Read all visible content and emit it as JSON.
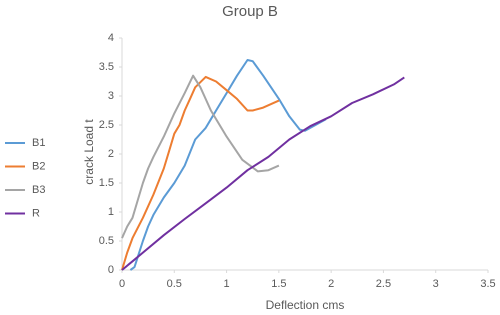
{
  "chart_data": {
    "type": "line",
    "title": "Group B",
    "x_label": "Deflection cms",
    "y_label": "crack Load t",
    "xlim": [
      0,
      3.5
    ],
    "xticks": [
      0,
      0.5,
      1,
      1.5,
      2,
      2.5,
      3,
      3.5
    ],
    "ylim": [
      0,
      4
    ],
    "yticks": [
      0,
      0.5,
      1,
      1.5,
      2,
      2.5,
      3,
      3.5,
      4
    ],
    "grid": false,
    "legend": "left",
    "series": [
      {
        "name": "B1",
        "color": "#5b9bd5",
        "x": [
          0.08,
          0.12,
          0.2,
          0.25,
          0.3,
          0.4,
          0.5,
          0.6,
          0.7,
          0.8,
          0.85,
          0.9,
          1.0,
          1.1,
          1.2,
          1.25,
          1.35,
          1.5,
          1.6,
          1.7,
          1.75,
          1.8,
          1.95
        ],
        "values": [
          0,
          0.05,
          0.5,
          0.75,
          0.95,
          1.25,
          1.5,
          1.8,
          2.25,
          2.45,
          2.6,
          2.75,
          3.05,
          3.35,
          3.62,
          3.6,
          3.35,
          2.95,
          2.65,
          2.42,
          2.4,
          2.45,
          2.6
        ]
      },
      {
        "name": "B2",
        "color": "#ed7d31",
        "x": [
          0,
          0.05,
          0.1,
          0.2,
          0.3,
          0.4,
          0.45,
          0.5,
          0.55,
          0.6,
          0.65,
          0.7,
          0.8,
          0.9,
          1.0,
          1.1,
          1.2,
          1.25,
          1.35,
          1.5
        ],
        "values": [
          0,
          0.3,
          0.55,
          0.9,
          1.3,
          1.75,
          2.05,
          2.35,
          2.5,
          2.75,
          2.95,
          3.15,
          3.33,
          3.25,
          3.1,
          2.95,
          2.75,
          2.75,
          2.8,
          2.92
        ]
      },
      {
        "name": "B3",
        "color": "#a5a5a5",
        "x": [
          0,
          0.05,
          0.1,
          0.15,
          0.2,
          0.25,
          0.3,
          0.4,
          0.5,
          0.6,
          0.68,
          0.75,
          0.85,
          1.0,
          1.15,
          1.3,
          1.4,
          1.5
        ],
        "values": [
          0.55,
          0.75,
          0.9,
          1.2,
          1.5,
          1.75,
          1.95,
          2.3,
          2.7,
          3.05,
          3.35,
          3.15,
          2.75,
          2.3,
          1.9,
          1.7,
          1.72,
          1.8
        ]
      },
      {
        "name": "R",
        "color": "#7030a0",
        "x": [
          0,
          0.1,
          0.2,
          0.4,
          0.6,
          0.8,
          1.0,
          1.2,
          1.4,
          1.6,
          1.8,
          2.0,
          2.2,
          2.4,
          2.6,
          2.7
        ],
        "values": [
          0,
          0.15,
          0.3,
          0.6,
          0.88,
          1.15,
          1.42,
          1.72,
          1.95,
          2.25,
          2.48,
          2.65,
          2.88,
          3.03,
          3.2,
          3.32
        ]
      }
    ]
  }
}
